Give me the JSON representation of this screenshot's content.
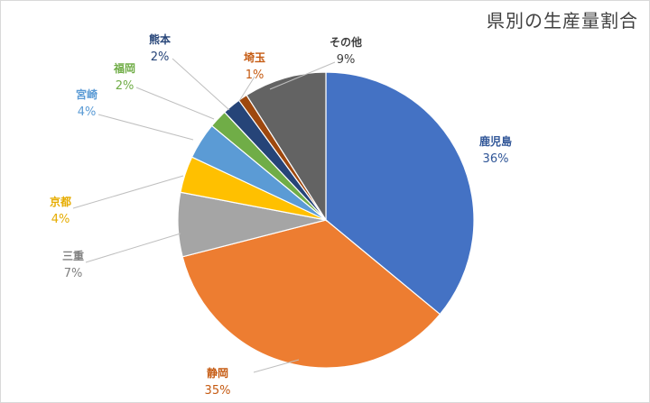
{
  "chart_data": {
    "type": "pie",
    "title": "県別の生産量割合",
    "start_angle_deg": 0,
    "direction": "clockwise",
    "slices": [
      {
        "label": "鹿児島",
        "value": 36,
        "value_label": "36%",
        "color": "#4472C4",
        "label_color": "#2F5597"
      },
      {
        "label": "静岡",
        "value": 35,
        "value_label": "35%",
        "color": "#ED7D31",
        "label_color": "#C55A11"
      },
      {
        "label": "三重",
        "value": 7,
        "value_label": "7%",
        "color": "#A5A5A5",
        "label_color": "#7F7F7F"
      },
      {
        "label": "京都",
        "value": 4,
        "value_label": "4%",
        "color": "#FFC000",
        "label_color": "#E6AC00"
      },
      {
        "label": "宮崎",
        "value": 4,
        "value_label": "4%",
        "color": "#5B9BD5",
        "label_color": "#5B9BD5"
      },
      {
        "label": "福岡",
        "value": 2,
        "value_label": "2%",
        "color": "#70AD47",
        "label_color": "#70AD47"
      },
      {
        "label": "熊本",
        "value": 2,
        "value_label": "2%",
        "color": "#264478",
        "label_color": "#264478"
      },
      {
        "label": "埼玉",
        "value": 1,
        "value_label": "1%",
        "color": "#9E480E",
        "label_color": "#C55A11"
      },
      {
        "label": "その他",
        "value": 9,
        "value_label": "9%",
        "color": "#636363",
        "label_color": "#404040"
      }
    ],
    "leader_line_color": "#BFBFBF"
  }
}
